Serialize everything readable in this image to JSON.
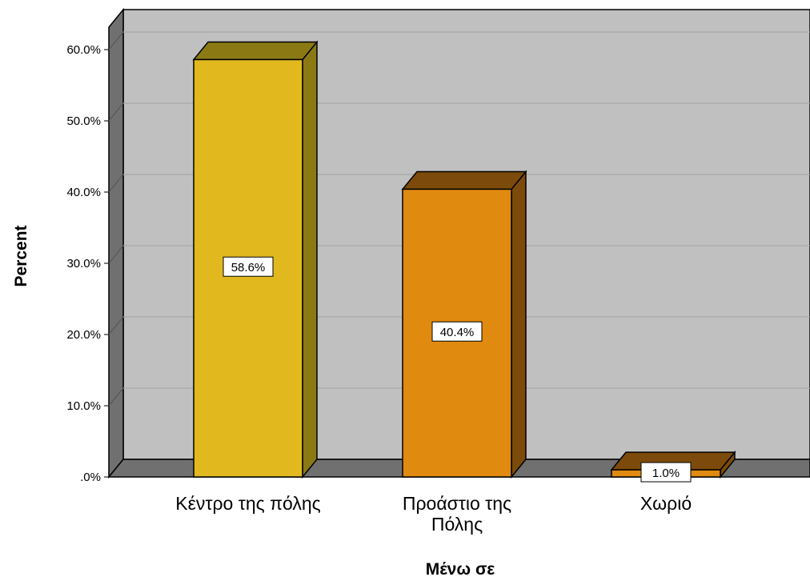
{
  "chart_data": {
    "type": "bar",
    "categories": [
      "Κέντρο της πόλης",
      "Προάστιο της Πόλης",
      "Χωριό"
    ],
    "values": [
      58.6,
      40.4,
      1.0
    ],
    "data_labels": [
      "58.6%",
      "40.4%",
      "1.0%"
    ],
    "ylabel": "Percent",
    "xlabel": "Μένω σε",
    "ylim": [
      0,
      60
    ],
    "yticks": [
      ".0%",
      "10.0%",
      "20.0%",
      "30.0%",
      "40.0%",
      "50.0%",
      "60.0%"
    ],
    "grid": true,
    "style_3d": true,
    "colors": {
      "bars": [
        "#E1B91E",
        "#E08A10",
        "#E08A10"
      ],
      "bar_tops": [
        "#8B7A14",
        "#7C4A0A",
        "#7C4A0A"
      ],
      "bar_sides": [
        "#8B7A14",
        "#7C4A0A",
        "#7C4A0A"
      ],
      "wall": "#C0C0C0",
      "floor": "#707070",
      "gridline": "#A8A8A8"
    }
  }
}
